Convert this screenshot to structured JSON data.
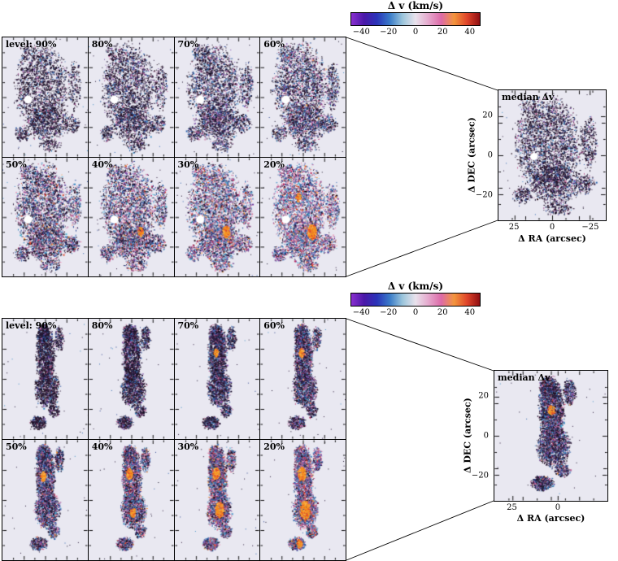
{
  "colors": {
    "page_bg": "#ffffff",
    "panel_bg": "#e9e8f1",
    "axis": "#000000",
    "colormap": [
      "#8a2fd0",
      "#4a18a8",
      "#2a33b8",
      "#3a7bc8",
      "#9cc6dc",
      "#e9e2ec",
      "#e5a9cd",
      "#dd6aa8",
      "#f2953c",
      "#e0452a",
      "#8f0e12"
    ],
    "speckle_dark": [
      "#181028",
      "#241533",
      "#2c1a3a",
      "#1c1426",
      "#332042",
      "#2a1220"
    ],
    "speckle_mid": [
      "#2a4590",
      "#2f66ad",
      "#3f8fc4",
      "#7e4fa8",
      "#a85898",
      "#476ba8",
      "#c06898"
    ],
    "speckle_bright": [
      "#e8799f",
      "#f2a0c4",
      "#f2953b",
      "#e2492a",
      "#4ab6d6",
      "#f5f2f6",
      "#c03060"
    ],
    "hotspot": "#f59120"
  },
  "figures": [
    {
      "colorbar": {
        "title": "Δ v (km/s)",
        "ticks": [
          "−40",
          "−20",
          "0",
          "20",
          "40"
        ]
      },
      "panels": [
        {
          "label": "level: 90%"
        },
        {
          "label": "80%"
        },
        {
          "label": "70%"
        },
        {
          "label": "60%"
        },
        {
          "label": "50%"
        },
        {
          "label": "40%"
        },
        {
          "label": "30%"
        },
        {
          "label": "20%"
        }
      ],
      "median": {
        "title": "median Δv",
        "x_label": "Δ RA (arcsec)",
        "y_label": "Δ DEC (arcsec)",
        "x_ticks": [
          "25",
          "0",
          "−25"
        ],
        "y_ticks": [
          "20",
          "0",
          "−20"
        ]
      }
    },
    {
      "colorbar": {
        "title": "Δ v (km/s)",
        "ticks": [
          "−40",
          "−20",
          "0",
          "20",
          "40"
        ]
      },
      "panels": [
        {
          "label": "level: 90%"
        },
        {
          "label": "80%"
        },
        {
          "label": "70%"
        },
        {
          "label": "60%"
        },
        {
          "label": "50%"
        },
        {
          "label": "40%"
        },
        {
          "label": "30%"
        },
        {
          "label": "20%"
        }
      ],
      "median": {
        "title": "median Δv",
        "x_label": "Δ RA (arcsec)",
        "y_label": "Δ DEC (arcsec)",
        "x_ticks": [
          "25",
          "0"
        ],
        "y_ticks": [
          "20",
          "0",
          "−20"
        ]
      }
    }
  ],
  "chart_data": [
    {
      "type": "heatmap",
      "title": "Δ v (km/s)",
      "colorbar": {
        "label": "Δ v (km/s)",
        "ticks": [
          -40,
          -20,
          0,
          20,
          40
        ],
        "range": [
          -48,
          48
        ]
      },
      "levels": [
        "90%",
        "80%",
        "70%",
        "60%",
        "50%",
        "40%",
        "30%",
        "20%"
      ],
      "median_map": {
        "title": "median Δv",
        "xlabel": "Δ RA (arcsec)",
        "ylabel": "Δ DEC (arcsec)",
        "x_ticks": [
          25,
          0,
          -25
        ],
        "y_ticks": [
          20,
          0,
          -20
        ],
        "x_range": [
          35,
          -35
        ],
        "y_range": [
          -35,
          35
        ]
      },
      "grid": false,
      "legend_position": "top-colorbar"
    },
    {
      "type": "heatmap",
      "title": "Δ v (km/s)",
      "colorbar": {
        "label": "Δ v (km/s)",
        "ticks": [
          -40,
          -20,
          0,
          20,
          40
        ],
        "range": [
          -48,
          48
        ]
      },
      "levels": [
        "90%",
        "80%",
        "70%",
        "60%",
        "50%",
        "40%",
        "30%",
        "20%"
      ],
      "median_map": {
        "title": "median Δv",
        "xlabel": "Δ RA (arcsec)",
        "ylabel": "Δ DEC (arcsec)",
        "x_ticks": [
          25,
          0
        ],
        "y_ticks": [
          20,
          0,
          -20
        ],
        "x_range": [
          35,
          -35
        ],
        "y_range": [
          -35,
          35
        ]
      },
      "grid": false,
      "legend_position": "top-colorbar"
    }
  ]
}
